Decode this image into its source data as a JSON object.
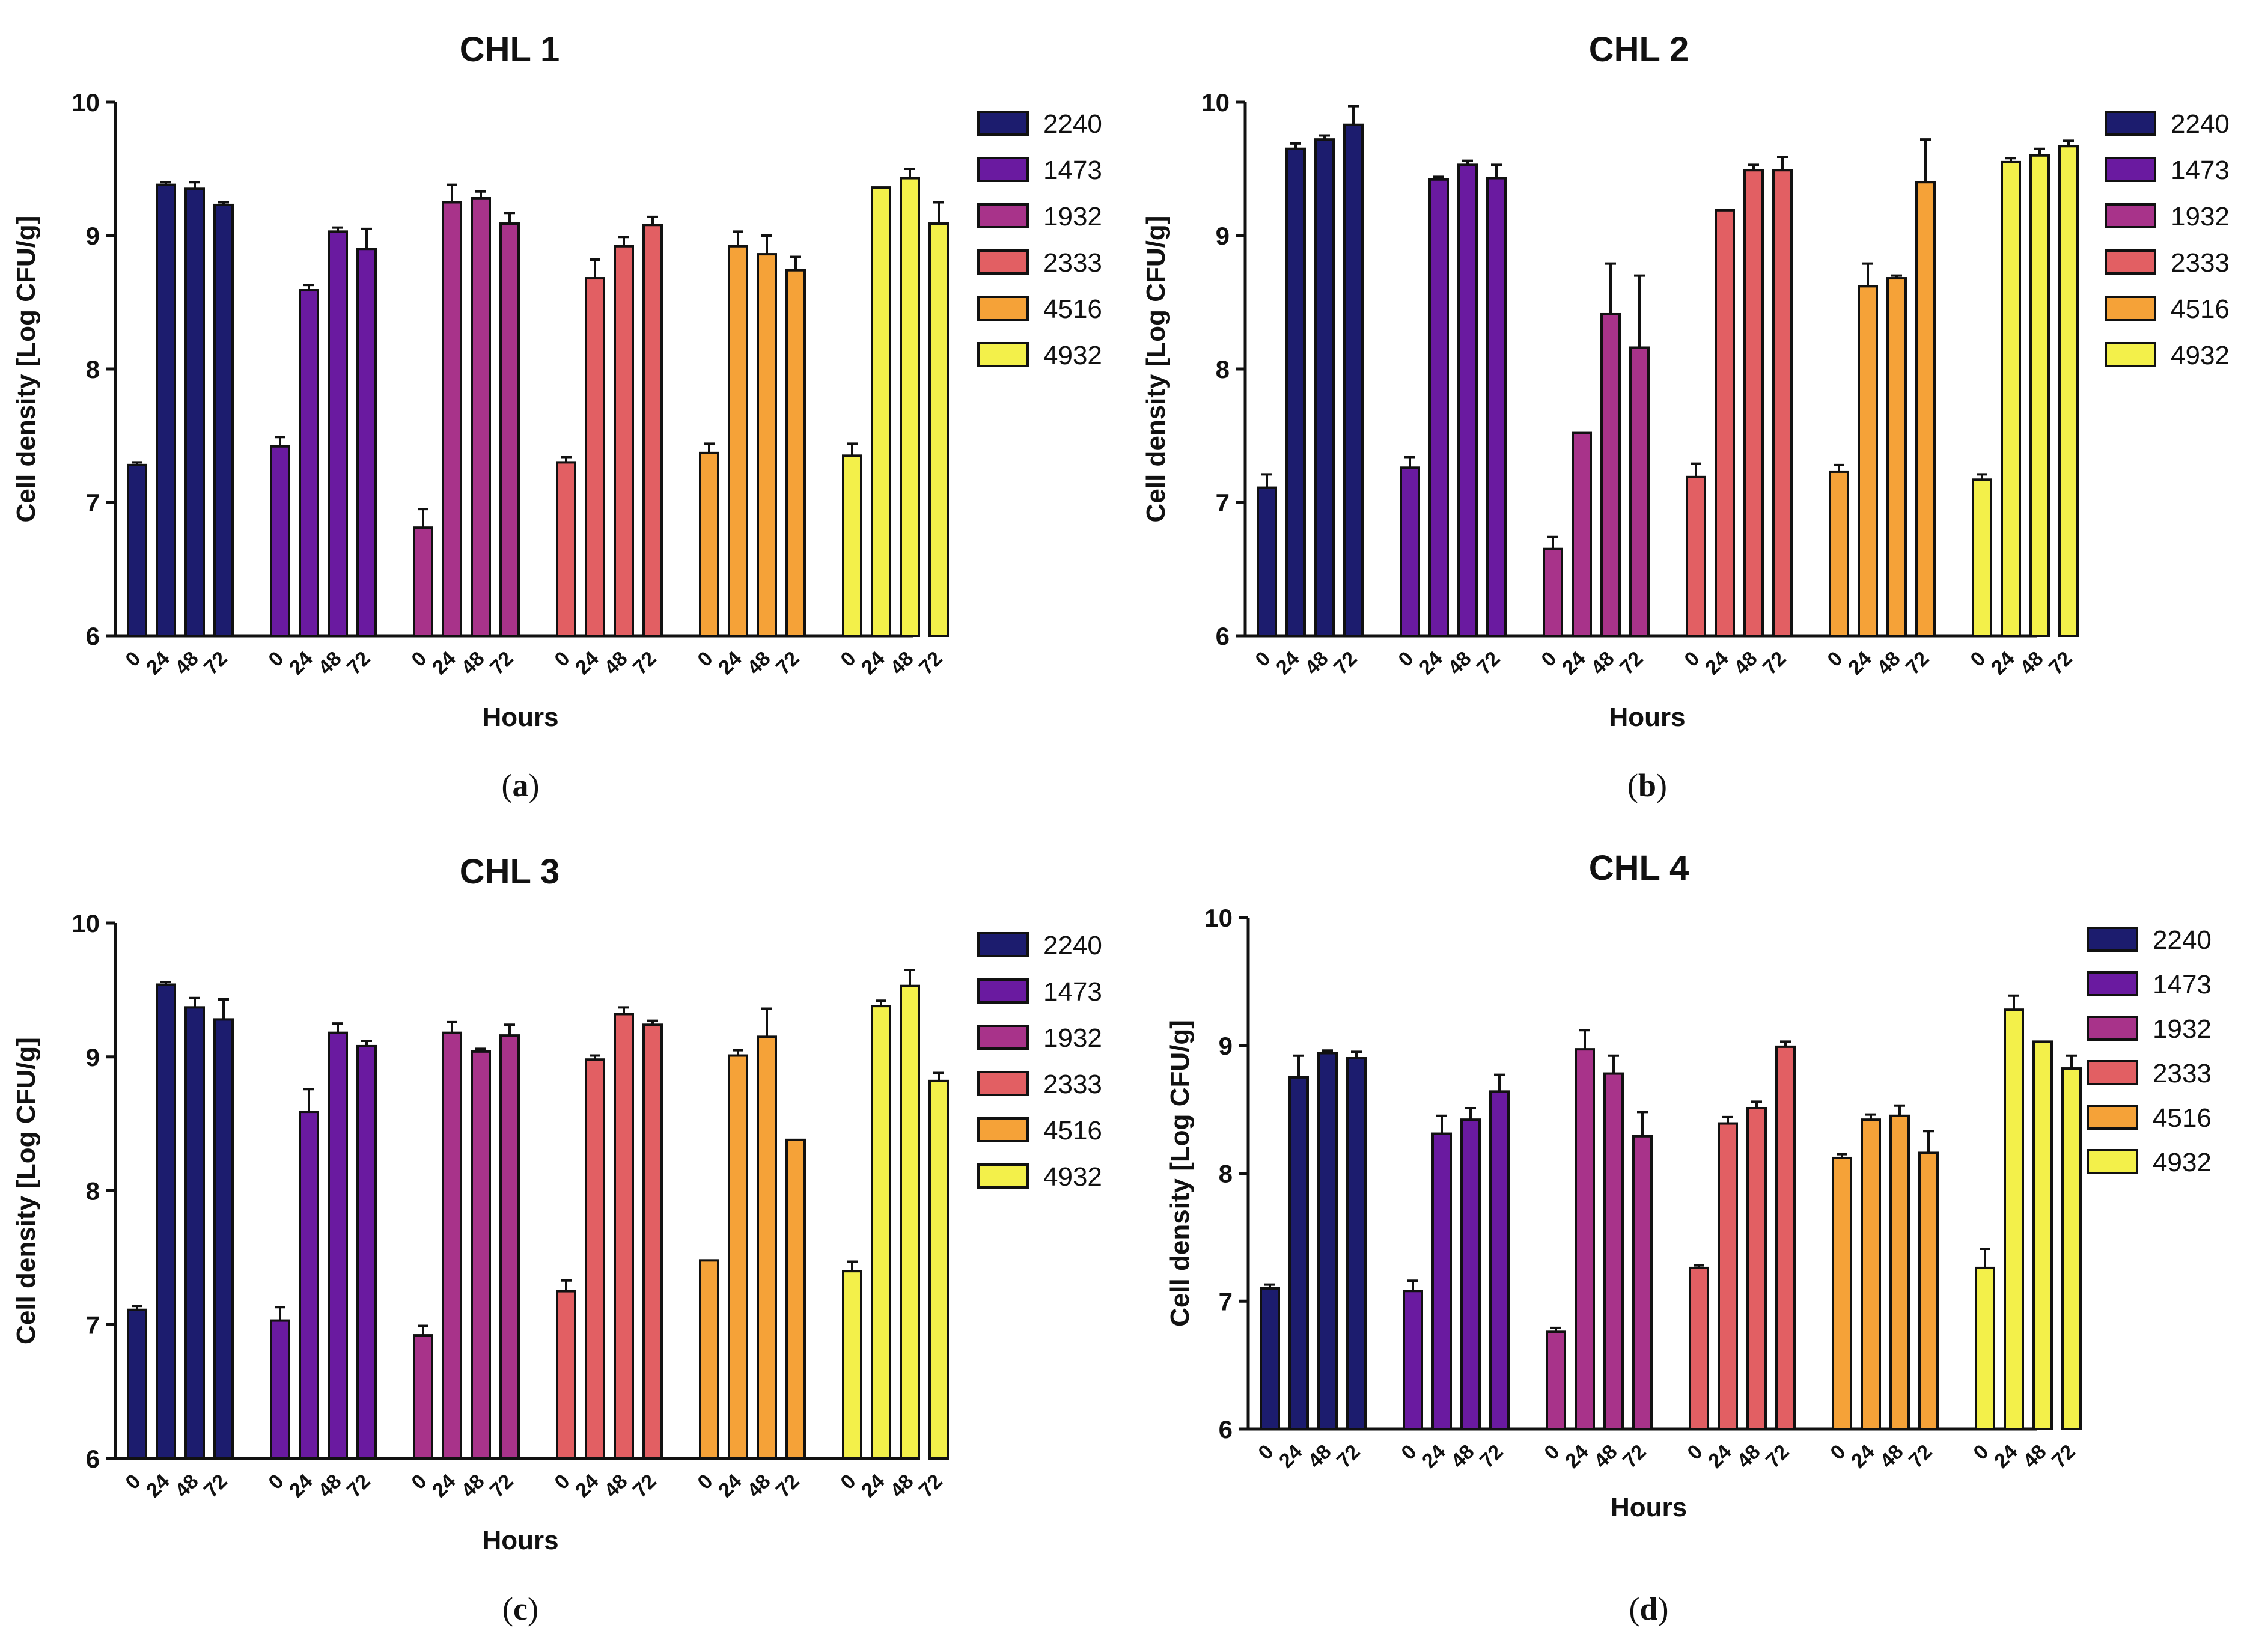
{
  "colors": [
    "#1c1c6e",
    "#6a1aa0",
    "#a8338a",
    "#e25f63",
    "#f5a238",
    "#f3f04a"
  ],
  "chart_data": [
    {
      "type": "bar",
      "title": "CHL 1",
      "caption": "a",
      "xlabel": "Hours",
      "ylabel": "Cell density [Log CFU/g]",
      "ylim": [
        6,
        10
      ],
      "yticks": [
        "6",
        "7",
        "8",
        "9",
        "10"
      ],
      "categories": [
        "0",
        "24",
        "48",
        "72"
      ],
      "series": [
        {
          "name": "2240",
          "values": [
            7.28,
            9.38,
            9.35,
            9.23
          ],
          "errors": [
            0.02,
            0.02,
            0.05,
            0.02
          ]
        },
        {
          "name": "1473",
          "values": [
            7.42,
            8.59,
            9.03,
            8.9
          ],
          "errors": [
            0.07,
            0.04,
            0.03,
            0.15
          ]
        },
        {
          "name": "1932",
          "values": [
            6.81,
            9.25,
            9.28,
            9.09
          ],
          "errors": [
            0.14,
            0.13,
            0.05,
            0.08
          ]
        },
        {
          "name": "2333",
          "values": [
            7.3,
            8.68,
            8.92,
            9.08
          ],
          "errors": [
            0.04,
            0.14,
            0.07,
            0.06
          ]
        },
        {
          "name": "4516",
          "values": [
            7.37,
            8.92,
            8.86,
            8.74
          ],
          "errors": [
            0.07,
            0.11,
            0.14,
            0.1
          ]
        },
        {
          "name": "4932",
          "values": [
            7.35,
            9.36,
            9.43,
            9.09
          ],
          "errors": [
            0.09,
            0.0,
            0.07,
            0.16
          ]
        }
      ]
    },
    {
      "type": "bar",
      "title": "CHL 2",
      "caption": "b",
      "xlabel": "Hours",
      "ylabel": "Cell density [Log CFU/g]",
      "ylim": [
        6,
        10
      ],
      "yticks": [
        "6",
        "7",
        "8",
        "9",
        "10"
      ],
      "categories": [
        "0",
        "24",
        "48",
        "72"
      ],
      "series": [
        {
          "name": "2240",
          "values": [
            7.11,
            9.65,
            9.72,
            9.83
          ],
          "errors": [
            0.1,
            0.04,
            0.03,
            0.14
          ]
        },
        {
          "name": "1473",
          "values": [
            7.26,
            9.42,
            9.53,
            9.43
          ],
          "errors": [
            0.08,
            0.02,
            0.03,
            0.1
          ]
        },
        {
          "name": "1932",
          "values": [
            6.65,
            7.52,
            8.41,
            8.16
          ],
          "errors": [
            0.09,
            0.0,
            0.38,
            0.54
          ]
        },
        {
          "name": "2333",
          "values": [
            7.19,
            9.19,
            9.49,
            9.49
          ],
          "errors": [
            0.1,
            0.0,
            0.04,
            0.1
          ]
        },
        {
          "name": "4516",
          "values": [
            7.23,
            8.62,
            8.68,
            9.4
          ],
          "errors": [
            0.05,
            0.17,
            0.02,
            0.32
          ]
        },
        {
          "name": "4932",
          "values": [
            7.17,
            9.55,
            9.6,
            9.67
          ],
          "errors": [
            0.04,
            0.03,
            0.05,
            0.04
          ]
        }
      ]
    },
    {
      "type": "bar",
      "title": "CHL 3",
      "caption": "c",
      "xlabel": "Hours",
      "ylabel": "Cell density [Log CFU/g]",
      "ylim": [
        6,
        10
      ],
      "yticks": [
        "6",
        "7",
        "8",
        "9",
        "10"
      ],
      "categories": [
        "0",
        "24",
        "48",
        "72"
      ],
      "series": [
        {
          "name": "2240",
          "values": [
            7.11,
            9.54,
            9.37,
            9.28
          ],
          "errors": [
            0.03,
            0.02,
            0.07,
            0.15
          ]
        },
        {
          "name": "1473",
          "values": [
            7.03,
            8.59,
            9.18,
            9.08
          ],
          "errors": [
            0.1,
            0.17,
            0.07,
            0.04
          ]
        },
        {
          "name": "1932",
          "values": [
            6.92,
            9.18,
            9.04,
            9.16
          ],
          "errors": [
            0.07,
            0.08,
            0.02,
            0.08
          ]
        },
        {
          "name": "2333",
          "values": [
            7.25,
            8.98,
            9.32,
            9.24
          ],
          "errors": [
            0.08,
            0.03,
            0.05,
            0.03
          ]
        },
        {
          "name": "4516",
          "values": [
            7.48,
            9.01,
            9.15,
            8.38
          ],
          "errors": [
            0.0,
            0.04,
            0.21,
            0.0
          ]
        },
        {
          "name": "4932",
          "values": [
            7.4,
            9.38,
            9.53,
            8.82
          ],
          "errors": [
            0.07,
            0.04,
            0.12,
            0.06
          ]
        }
      ]
    },
    {
      "type": "bar",
      "title": "CHL 4",
      "caption": "d",
      "xlabel": "Hours",
      "ylabel": "Cell density [Log CFU/g]",
      "ylim": [
        6,
        10
      ],
      "yticks": [
        "6",
        "7",
        "8",
        "9",
        "10"
      ],
      "categories": [
        "0",
        "24",
        "48",
        "72"
      ],
      "series": [
        {
          "name": "2240",
          "values": [
            7.1,
            8.75,
            8.94,
            8.9
          ],
          "errors": [
            0.03,
            0.17,
            0.02,
            0.05
          ]
        },
        {
          "name": "1473",
          "values": [
            7.08,
            8.31,
            8.42,
            8.64
          ],
          "errors": [
            0.08,
            0.14,
            0.09,
            0.13
          ]
        },
        {
          "name": "1932",
          "values": [
            6.76,
            8.97,
            8.78,
            8.29
          ],
          "errors": [
            0.03,
            0.15,
            0.14,
            0.19
          ]
        },
        {
          "name": "2333",
          "values": [
            7.26,
            8.39,
            8.51,
            8.99
          ],
          "errors": [
            0.02,
            0.05,
            0.05,
            0.04
          ]
        },
        {
          "name": "4516",
          "values": [
            8.12,
            8.42,
            8.45,
            8.16
          ],
          "errors": [
            0.03,
            0.04,
            0.08,
            0.17
          ]
        },
        {
          "name": "4932",
          "values": [
            7.26,
            9.28,
            9.03,
            8.82
          ],
          "errors": [
            0.15,
            0.11,
            0.0,
            0.1
          ]
        }
      ]
    }
  ]
}
